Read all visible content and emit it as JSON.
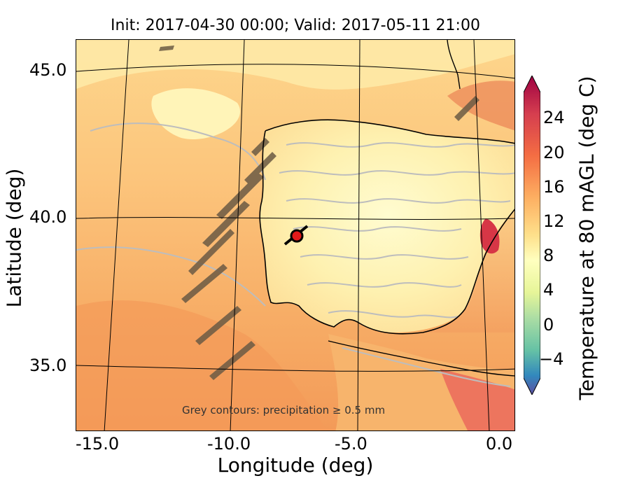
{
  "title": "Init: 2017-04-30 00:00; Valid: 2017-05-11 21:00",
  "xlabel": "Longitude (deg)",
  "ylabel": "Latitude (deg)",
  "colorbar": {
    "label": "Temperature at 80 mAGL (deg C)",
    "ticks": [
      "24",
      "20",
      "16",
      "12",
      "8",
      "4",
      "0",
      "−4"
    ],
    "extend": "both"
  },
  "annotation": "Grey contours: precipitation ≥ 0.5 mm",
  "chart_data": {
    "type": "heatmap",
    "title": "Init: 2017-04-30 00:00; Valid: 2017-05-11 21:00",
    "xlabel": "Longitude (deg)",
    "ylabel": "Latitude (deg)",
    "xticks": [
      "-15.0",
      "-10.0",
      "-5.0",
      "0.0"
    ],
    "yticks": [
      "45.0",
      "40.0",
      "35.0"
    ],
    "colorbar_label": "Temperature at 80 mAGL (deg C)",
    "colorbar_ticks": [
      24,
      20,
      16,
      12,
      8,
      4,
      0,
      -4
    ],
    "marker": {
      "lon": -7.6,
      "lat": 39.4
    },
    "colors": {
      "ocean_warm": "#f6a964",
      "ocean_mid": "#fcc57c",
      "cool": "#fff3b0",
      "land": "#fef5b8",
      "hot": "#d73646",
      "precip_contour": "#b8b8b8",
      "marker": "#e21a1a"
    }
  }
}
